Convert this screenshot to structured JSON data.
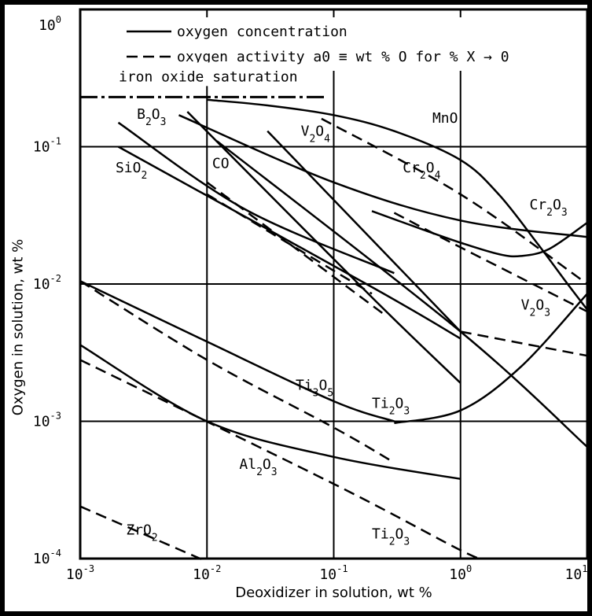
{
  "chart_data": {
    "type": "line",
    "xlabel": "Deoxidizer in solution, wt %",
    "ylabel": "Oxygen in solution, wt %",
    "xscale": "log",
    "yscale": "log",
    "xlim": [
      0.001,
      10
    ],
    "ylim": [
      0.0001,
      1
    ],
    "x_ticks": [
      {
        "mant": "10",
        "exp": "-3"
      },
      {
        "mant": "10",
        "exp": "-2"
      },
      {
        "mant": "10",
        "exp": "-1"
      },
      {
        "mant": "10",
        "exp": "0"
      },
      {
        "mant": "10",
        "exp": "1"
      }
    ],
    "y_ticks": [
      {
        "mant": "10",
        "exp": "-4"
      },
      {
        "mant": "10",
        "exp": "-3"
      },
      {
        "mant": "10",
        "exp": "-2"
      },
      {
        "mant": "10",
        "exp": "-1"
      },
      {
        "mant": "10",
        "exp": "0"
      }
    ],
    "grid": true,
    "legend": {
      "position": "top",
      "items": [
        {
          "label": "oxygen concentration",
          "style": "solid"
        },
        {
          "label": "oxygen activity a0 ≡ wt % O for % X → 0",
          "style": "dashed"
        }
      ]
    },
    "saturation_line": {
      "label": "iron oxide saturation",
      "y": 0.23,
      "x": [
        0.001,
        0.085
      ]
    },
    "series": [
      {
        "name": "MnO",
        "style": "solid",
        "points": [
          [
            0.01,
            0.22
          ],
          [
            0.03,
            0.2
          ],
          [
            0.1,
            0.17
          ],
          [
            0.3,
            0.13
          ],
          [
            1,
            0.08
          ],
          [
            2,
            0.045
          ],
          [
            4,
            0.02
          ],
          [
            7,
            0.01
          ],
          [
            10,
            0.0065
          ]
        ]
      },
      {
        "name": "MnO",
        "style": "dashed",
        "points": [
          [
            0.08,
            0.16
          ],
          [
            1,
            0.045
          ],
          [
            10,
            0.01
          ]
        ]
      },
      {
        "name": "Cr2O3",
        "style": "solid",
        "points": [
          [
            0.2,
            0.034
          ],
          [
            0.5,
            0.025
          ],
          [
            1,
            0.02
          ],
          [
            2,
            0.0165
          ],
          [
            3,
            0.016
          ],
          [
            5,
            0.018
          ],
          [
            10,
            0.028
          ]
        ]
      },
      {
        "name": "Cr2O4",
        "style": "solid",
        "points": [
          [
            0.006,
            0.17
          ],
          [
            0.1,
            0.055
          ],
          [
            1,
            0.029
          ],
          [
            10,
            0.022
          ]
        ]
      },
      {
        "name": "Cr2O4",
        "style": "dashed",
        "points": [
          [
            0.3,
            0.033
          ],
          [
            1,
            0.0185
          ],
          [
            10,
            0.0063
          ]
        ]
      },
      {
        "name": "V2O4",
        "style": "solid",
        "points": [
          [
            0.007,
            0.18
          ],
          [
            0.2,
            0.008
          ],
          [
            1,
            0.0019
          ]
        ]
      },
      {
        "name": "V2O3",
        "style": "solid",
        "points": [
          [
            0.012,
            0.11
          ],
          [
            1,
            0.0045
          ],
          [
            10,
            0.00065
          ]
        ]
      },
      {
        "name": "V2O3",
        "style": "dashed",
        "points": [
          [
            1,
            0.0045
          ],
          [
            10,
            0.003
          ]
        ]
      },
      {
        "name": "CO",
        "style": "solid",
        "points": [
          [
            0.03,
            0.13
          ],
          [
            1,
            0.0045
          ]
        ]
      },
      {
        "name": "B2O3",
        "style": "solid",
        "points": [
          [
            0.002,
            0.15
          ],
          [
            0.02,
            0.035
          ],
          [
            0.3,
            0.012
          ]
        ]
      },
      {
        "name": "B2O3",
        "style": "dashed",
        "points": [
          [
            0.01,
            0.055
          ],
          [
            0.25,
            0.006
          ]
        ]
      },
      {
        "name": "SiO2",
        "style": "solid",
        "points": [
          [
            0.002,
            0.1
          ],
          [
            0.2,
            0.0095
          ],
          [
            1,
            0.004
          ]
        ]
      },
      {
        "name": "SiO2",
        "style": "dashed",
        "points": [
          [
            0.01,
            0.045
          ],
          [
            0.2,
            0.0085
          ]
        ]
      },
      {
        "name": "Ti3O5",
        "style": "solid",
        "points": [
          [
            0.001,
            0.0105
          ],
          [
            0.01,
            0.0038
          ],
          [
            0.1,
            0.0014
          ],
          [
            0.3,
            0.001
          ]
        ]
      },
      {
        "name": "Ti3O5",
        "style": "dashed",
        "points": [
          [
            0.001,
            0.0105
          ],
          [
            0.01,
            0.0028
          ],
          [
            0.1,
            0.0009
          ],
          [
            0.3,
            0.0005
          ]
        ]
      },
      {
        "name": "Ti2O3",
        "style": "solid",
        "points": [
          [
            0.001,
            0.0036
          ],
          [
            0.01,
            0.001
          ],
          [
            0.1,
            0.00055
          ],
          [
            1,
            0.00038
          ]
        ]
      },
      {
        "name": "Ti2O3",
        "style": "solid",
        "points": [
          [
            0.3,
            0.00097
          ],
          [
            1,
            0.0012
          ],
          [
            3,
            0.0025
          ],
          [
            10,
            0.0085
          ]
        ]
      },
      {
        "name": "Al2O3",
        "style": "dashed",
        "points": [
          [
            0.001,
            0.0028
          ],
          [
            0.1,
            0.00035
          ],
          [
            1,
            0.000115
          ],
          [
            1.5,
            0.0001
          ]
        ]
      },
      {
        "name": "ZrO2",
        "style": "dashed",
        "points": [
          [
            0.001,
            0.00024
          ],
          [
            0.01,
            9.5e-05
          ]
        ]
      }
    ],
    "curve_labels": [
      {
        "text": "MnO",
        "x": 0.6,
        "y": 0.15
      },
      {
        "text": "Cr2O3",
        "sub": "2",
        "x": 3.5,
        "y": 0.035
      },
      {
        "text": "Cr2O4",
        "x": 0.35,
        "y": 0.065
      },
      {
        "text": "V2O4",
        "x": 0.055,
        "y": 0.12
      },
      {
        "text": "V2O3",
        "x": 3.0,
        "y": 0.0065
      },
      {
        "text": "CO",
        "x": 0.011,
        "y": 0.07
      },
      {
        "text": "B2O3",
        "x": 0.0028,
        "y": 0.16
      },
      {
        "text": "SiO2",
        "x": 0.0019,
        "y": 0.065
      },
      {
        "text": "Ti3O5",
        "x": 0.05,
        "y": 0.0017
      },
      {
        "text": "Ti2O3",
        "x": 0.2,
        "y": 0.00125
      },
      {
        "text": "Al2O3",
        "x": 0.018,
        "y": 0.00045
      },
      {
        "text": "ZrO2",
        "x": 0.0023,
        "y": 0.00015
      },
      {
        "text": "Ti2O3",
        "x": 0.2,
        "y": 0.00014
      }
    ]
  }
}
